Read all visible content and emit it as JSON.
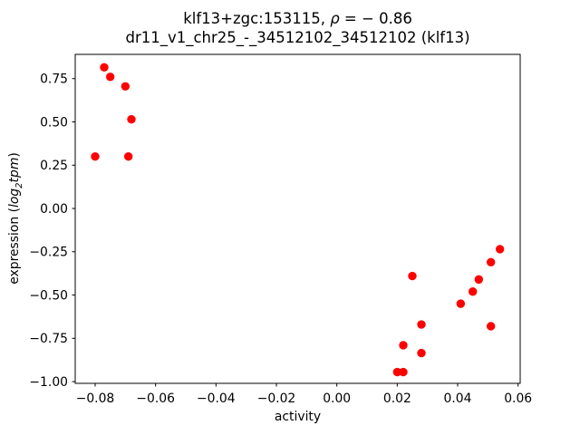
{
  "title": {
    "line1_pre": "klf13+zgc:153115, ",
    "line1_rho": "ρ",
    "line1_post": " = − 0.86",
    "line2": "dr11_v1_chr25_-_34512102_34512102 (klf13)"
  },
  "axes": {
    "xlabel": "activity",
    "ylabel_pre": "expression (",
    "ylabel_log": "log",
    "ylabel_sub": "2",
    "ylabel_tpm": "tpm",
    "ylabel_post": ")"
  },
  "chart_data": {
    "type": "scatter",
    "title": "klf13+zgc:153115, ρ = − 0.86",
    "subtitle": "dr11_v1_chr25_-_34512102_34512102 (klf13)",
    "xlabel": "activity",
    "ylabel": "expression (log2 tpm)",
    "marker_color": "#ff0000",
    "marker_diameter_px": 9.4,
    "grid": false,
    "legend_position": "none",
    "xlim": [
      -0.0866,
      0.0607
    ],
    "ylim": [
      -1.01,
      0.89
    ],
    "x_ticks": [
      -0.08,
      -0.06,
      -0.04,
      -0.02,
      0.0,
      0.02,
      0.04,
      0.06
    ],
    "y_ticks": [
      0.75,
      0.5,
      0.25,
      0.0,
      -0.25,
      -0.5,
      -0.75,
      -1.0
    ],
    "points": [
      [
        -0.077,
        0.815
      ],
      [
        -0.075,
        0.76
      ],
      [
        -0.07,
        0.705
      ],
      [
        -0.068,
        0.515
      ],
      [
        -0.08,
        0.3
      ],
      [
        -0.069,
        0.3
      ],
      [
        0.025,
        -0.39
      ],
      [
        0.054,
        -0.235
      ],
      [
        0.051,
        -0.31
      ],
      [
        0.047,
        -0.41
      ],
      [
        0.045,
        -0.48
      ],
      [
        0.041,
        -0.55
      ],
      [
        0.028,
        -0.67
      ],
      [
        0.051,
        -0.68
      ],
      [
        0.022,
        -0.79
      ],
      [
        0.028,
        -0.835
      ],
      [
        0.02,
        -0.945
      ],
      [
        0.022,
        -0.945
      ]
    ]
  }
}
